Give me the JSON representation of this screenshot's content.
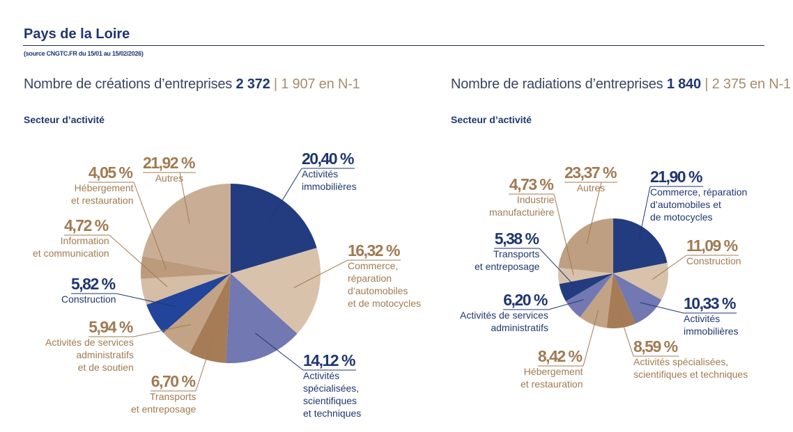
{
  "title": "Pays de la Loire",
  "source": "(source CNGTC.FR du 15/01 au 15/02/2026)",
  "creations": {
    "label": "Nombre de créations d’entreprises",
    "value": "2 372",
    "separator": "|",
    "previous": "1 907 en N-1",
    "section": "Secteur d’activité"
  },
  "radiations": {
    "label": "Nombre de radiations d’entreprises",
    "value": "1 840",
    "separator": "|",
    "previous": "2 375 en N-1",
    "section": "Secteur d’activité"
  },
  "colors": {
    "navy": "#233c80",
    "blue": "#22449a",
    "periwinkle": "#7178b2",
    "light_beige": "#d9c2ac",
    "tan": "#c6aa90",
    "brown": "#a57c55",
    "mid_tan": "#bb9b7c"
  },
  "chart_data": [
    {
      "type": "pie",
      "title": "Nombre de créations d’entreprises",
      "subtitle": "Secteur d’activité",
      "slices": [
        {
          "label": "Activités immobilières",
          "lines": [
            "Activités",
            "immobilières"
          ],
          "value": 20.4,
          "pct": "20,40 %",
          "color": "#233c80",
          "text_color": "navy"
        },
        {
          "label": "Commerce, réparation d’automobiles et de motocycles",
          "lines": [
            "Commerce,",
            "réparation",
            "d’automobiles",
            "et de motocycles"
          ],
          "value": 16.32,
          "pct": "16,32 %",
          "color": "#d9c2ac",
          "text_color": "brown"
        },
        {
          "label": "Activités spécialisées, scientifiques et techniques",
          "lines": [
            "Activités",
            "spécialisées,",
            "scientifiques",
            "et techniques"
          ],
          "value": 14.12,
          "pct": "14,12 %",
          "color": "#7178b2",
          "text_color": "navy"
        },
        {
          "label": "Transports et entreposage",
          "lines": [
            "Transports",
            "et entreposage"
          ],
          "value": 6.7,
          "pct": "6,70 %",
          "color": "#a57c55",
          "text_color": "brown"
        },
        {
          "label": "Activités de services administratifs et de soutien",
          "lines": [
            "Activités de services",
            "administratifs",
            "et de soutien"
          ],
          "value": 5.94,
          "pct": "5,94 %",
          "color": "#c3a386",
          "text_color": "brown"
        },
        {
          "label": "Construction",
          "lines": [
            "Construction"
          ],
          "value": 5.82,
          "pct": "5,82 %",
          "color": "#22449a",
          "text_color": "navy"
        },
        {
          "label": "Information et communication",
          "lines": [
            "Information",
            "et communication"
          ],
          "value": 4.72,
          "pct": "4,72 %",
          "color": "#d6bda5",
          "text_color": "brown"
        },
        {
          "label": "Hébergement et restauration",
          "lines": [
            "Hébergement",
            "et restauration"
          ],
          "value": 4.05,
          "pct": "4,05 %",
          "color": "#bb9b7c",
          "text_color": "brown"
        },
        {
          "label": "Autres",
          "lines": [
            "Autres"
          ],
          "value": 21.92,
          "pct": "21,92 %",
          "color": "#c9ae95",
          "text_color": "brown"
        }
      ]
    },
    {
      "type": "pie",
      "title": "Nombre de radiations d’entreprises",
      "subtitle": "Secteur d’activité",
      "slices": [
        {
          "label": "Commerce, réparation d’automobiles et de motocycles",
          "lines": [
            "Commerce, réparation",
            "d’automobiles et",
            "de motocycles"
          ],
          "value": 21.9,
          "pct": "21,90 %",
          "color": "#233c80",
          "text_color": "navy"
        },
        {
          "label": "Construction",
          "lines": [
            "Construction"
          ],
          "value": 11.09,
          "pct": "11,09 %",
          "color": "#d9c2ac",
          "text_color": "brown"
        },
        {
          "label": "Activités immobilières",
          "lines": [
            "Activités",
            "immobilières"
          ],
          "value": 10.33,
          "pct": "10,33 %",
          "color": "#7178b2",
          "text_color": "navy"
        },
        {
          "label": "Activités spécialisées, scientifiques et techniques",
          "lines": [
            "Activités spécialisées,",
            "scientifiques et techniques"
          ],
          "value": 8.59,
          "pct": "8,59 %",
          "color": "#a57c55",
          "text_color": "brown"
        },
        {
          "label": "Hébergement et restauration",
          "lines": [
            "Hébergement",
            "et restauration"
          ],
          "value": 8.42,
          "pct": "8,42 %",
          "color": "#c3a386",
          "text_color": "brown"
        },
        {
          "label": "Activités de services administratifs",
          "lines": [
            "Activités de services",
            "administratifs"
          ],
          "value": 6.2,
          "pct": "6,20 %",
          "color": "#7178b2",
          "text_color": "navy"
        },
        {
          "label": "Transports et entreposage",
          "lines": [
            "Transports",
            "et entreposage"
          ],
          "value": 5.38,
          "pct": "5,38 %",
          "color": "#233c80",
          "text_color": "navy"
        },
        {
          "label": "Industrie manufacturière",
          "lines": [
            "Industrie",
            "manufacturière"
          ],
          "value": 4.73,
          "pct": "4,73 %",
          "color": "#d9c2ac",
          "text_color": "brown"
        },
        {
          "label": "Autres",
          "lines": [
            "Autres"
          ],
          "value": 23.37,
          "pct": "23,37 %",
          "color": "#bf9f82",
          "text_color": "brown"
        }
      ]
    }
  ]
}
